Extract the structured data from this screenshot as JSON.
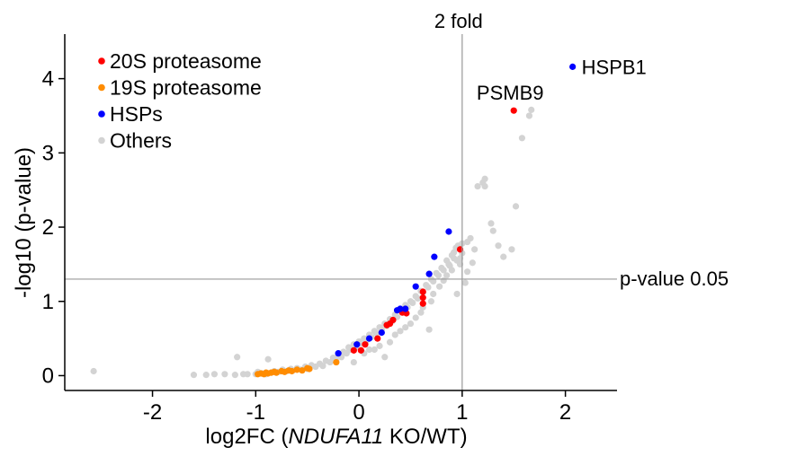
{
  "chart_data": {
    "type": "scatter",
    "xlabel_prefix": "log2FC (",
    "xlabel_italic": "NDUFA11",
    "xlabel_suffix": " KO/WT)",
    "ylabel": "-log10 (p-value)",
    "xlim": [
      -2.85,
      2.5
    ],
    "ylim": [
      -0.2,
      4.6
    ],
    "xticks": [
      -2,
      -1,
      0,
      1,
      2
    ],
    "yticks": [
      0,
      1,
      2,
      3,
      4
    ],
    "grid": false,
    "legend_position": "top-left",
    "reference_lines": [
      {
        "orientation": "vertical",
        "value": 1,
        "label": "2 fold"
      },
      {
        "orientation": "horizontal",
        "value": 1.3,
        "label": "p-value 0.05"
      }
    ],
    "series": [
      {
        "name": "Others",
        "color": "#d3d3d3",
        "points": [
          [
            -2.57,
            0.06
          ],
          [
            -1.6,
            0.01
          ],
          [
            -1.48,
            0.01
          ],
          [
            -1.4,
            0.02
          ],
          [
            -1.3,
            0.02
          ],
          [
            -1.2,
            0.01
          ],
          [
            -1.18,
            0.25
          ],
          [
            -1.12,
            0.02
          ],
          [
            -1.08,
            0.02
          ],
          [
            -1.0,
            0.02
          ],
          [
            -0.98,
            0.05
          ],
          [
            -0.94,
            0.03
          ],
          [
            -0.9,
            0.02
          ],
          [
            -0.88,
            0.22
          ],
          [
            -0.82,
            0.06
          ],
          [
            -0.78,
            0.05
          ],
          [
            -0.74,
            0.08
          ],
          [
            -0.7,
            0.06
          ],
          [
            -0.66,
            0.09
          ],
          [
            -0.64,
            0.07
          ],
          [
            -0.6,
            0.1
          ],
          [
            -0.56,
            0.08
          ],
          [
            -0.52,
            0.12
          ],
          [
            -0.5,
            0.09
          ],
          [
            -0.46,
            0.14
          ],
          [
            -0.42,
            0.12
          ],
          [
            -0.38,
            0.16
          ],
          [
            -0.35,
            0.13
          ],
          [
            -0.32,
            0.2
          ],
          [
            -0.28,
            0.18
          ],
          [
            -0.25,
            0.24
          ],
          [
            -0.22,
            0.2
          ],
          [
            -0.2,
            0.28
          ],
          [
            -0.17,
            0.25
          ],
          [
            -0.15,
            0.32
          ],
          [
            -0.12,
            0.3
          ],
          [
            -0.1,
            0.38
          ],
          [
            -0.08,
            0.35
          ],
          [
            -0.05,
            0.42
          ],
          [
            -0.03,
            0.38
          ],
          [
            0.0,
            0.46
          ],
          [
            0.02,
            0.43
          ],
          [
            0.05,
            0.5
          ],
          [
            0.07,
            0.47
          ],
          [
            0.1,
            0.55
          ],
          [
            0.12,
            0.52
          ],
          [
            0.15,
            0.6
          ],
          [
            0.17,
            0.57
          ],
          [
            0.2,
            0.65
          ],
          [
            0.22,
            0.62
          ],
          [
            0.25,
            0.7
          ],
          [
            0.27,
            0.67
          ],
          [
            0.3,
            0.76
          ],
          [
            0.32,
            0.73
          ],
          [
            0.35,
            0.82
          ],
          [
            0.37,
            0.79
          ],
          [
            0.4,
            0.88
          ],
          [
            0.42,
            0.85
          ],
          [
            0.45,
            0.95
          ],
          [
            0.47,
            0.92
          ],
          [
            0.5,
            1.0
          ],
          [
            0.52,
            0.98
          ],
          [
            0.55,
            1.07
          ],
          [
            0.57,
            1.04
          ],
          [
            0.6,
            1.14
          ],
          [
            0.62,
            1.12
          ],
          [
            0.65,
            1.22
          ],
          [
            0.67,
            1.19
          ],
          [
            0.7,
            1.3
          ],
          [
            0.72,
            1.27
          ],
          [
            0.75,
            1.38
          ],
          [
            0.77,
            1.35
          ],
          [
            0.8,
            1.45
          ],
          [
            0.82,
            1.42
          ],
          [
            0.85,
            1.55
          ],
          [
            0.87,
            1.5
          ],
          [
            0.9,
            1.62
          ],
          [
            0.92,
            1.58
          ],
          [
            0.94,
            1.72
          ],
          [
            0.96,
            1.75
          ],
          [
            1.0,
            1.78
          ],
          [
            0.95,
            1.55
          ],
          [
            0.9,
            1.42
          ],
          [
            0.85,
            1.35
          ],
          [
            0.3,
            0.45
          ],
          [
            0.2,
            0.4
          ],
          [
            0.1,
            0.35
          ],
          [
            0.4,
            0.6
          ],
          [
            0.5,
            0.7
          ],
          [
            0.6,
            0.85
          ],
          [
            0.7,
            1.0
          ],
          [
            0.68,
            0.62
          ],
          [
            0.25,
            0.25
          ],
          [
            -0.05,
            0.18
          ],
          [
            0.05,
            0.3
          ],
          [
            0.15,
            0.35
          ],
          [
            0.35,
            0.55
          ],
          [
            0.45,
            0.65
          ],
          [
            0.55,
            0.78
          ],
          [
            0.62,
            0.92
          ],
          [
            0.72,
            1.1
          ],
          [
            0.78,
            1.2
          ],
          [
            0.82,
            1.28
          ],
          [
            0.88,
            1.48
          ],
          [
            0.92,
            1.66
          ],
          [
            0.98,
            1.58
          ],
          [
            1.0,
            1.65
          ],
          [
            1.05,
            1.8
          ],
          [
            1.08,
            1.85
          ],
          [
            1.1,
            1.52
          ],
          [
            1.12,
            1.7
          ],
          [
            1.15,
            2.55
          ],
          [
            1.2,
            2.6
          ],
          [
            1.22,
            2.65
          ],
          [
            1.28,
            2.05
          ],
          [
            1.3,
            1.95
          ],
          [
            1.35,
            1.75
          ],
          [
            1.4,
            1.6
          ],
          [
            1.48,
            1.7
          ],
          [
            1.52,
            2.28
          ],
          [
            1.58,
            3.2
          ],
          [
            1.65,
            3.5
          ],
          [
            1.67,
            3.58
          ],
          [
            1.22,
            2.55
          ],
          [
            1.05,
            1.4
          ],
          [
            0.98,
            1.5
          ],
          [
            0.95,
            1.1
          ],
          [
            1.03,
            1.25
          ]
        ]
      },
      {
        "name": "19S proteasome",
        "color": "#ff8c00",
        "points": [
          [
            -0.98,
            0.02
          ],
          [
            -0.95,
            0.03
          ],
          [
            -0.92,
            0.02
          ],
          [
            -0.9,
            0.04
          ],
          [
            -0.88,
            0.03
          ],
          [
            -0.85,
            0.04
          ],
          [
            -0.82,
            0.05
          ],
          [
            -0.8,
            0.04
          ],
          [
            -0.75,
            0.06
          ],
          [
            -0.72,
            0.05
          ],
          [
            -0.68,
            0.07
          ],
          [
            -0.65,
            0.06
          ],
          [
            -0.6,
            0.08
          ],
          [
            -0.55,
            0.07
          ],
          [
            -0.5,
            0.1
          ],
          [
            -0.48,
            0.09
          ],
          [
            -0.22,
            0.18
          ]
        ]
      },
      {
        "name": "20S proteasome",
        "color": "#ff0000",
        "points": [
          [
            -0.05,
            0.34
          ],
          [
            0.02,
            0.34
          ],
          [
            0.06,
            0.42
          ],
          [
            0.18,
            0.5
          ],
          [
            0.27,
            0.68
          ],
          [
            0.3,
            0.7
          ],
          [
            0.33,
            0.75
          ],
          [
            0.42,
            0.85
          ],
          [
            0.46,
            0.84
          ],
          [
            0.62,
            0.97
          ],
          [
            0.62,
            1.05
          ],
          [
            0.62,
            1.13
          ],
          [
            0.98,
            1.7
          ],
          [
            1.5,
            3.57
          ]
        ]
      },
      {
        "name": "HSPs",
        "color": "#0000ff",
        "points": [
          [
            -0.2,
            0.3
          ],
          [
            -0.02,
            0.42
          ],
          [
            0.1,
            0.5
          ],
          [
            0.22,
            0.58
          ],
          [
            0.37,
            0.88
          ],
          [
            0.4,
            0.9
          ],
          [
            0.45,
            0.9
          ],
          [
            0.55,
            1.2
          ],
          [
            0.68,
            1.37
          ],
          [
            0.73,
            1.6
          ],
          [
            0.87,
            1.94
          ],
          [
            2.07,
            4.16
          ]
        ]
      }
    ],
    "annotations": [
      {
        "text": "HSPB1",
        "x": 2.07,
        "y": 4.16
      },
      {
        "text": "PSMB9",
        "x": 1.5,
        "y": 3.57
      }
    ]
  }
}
